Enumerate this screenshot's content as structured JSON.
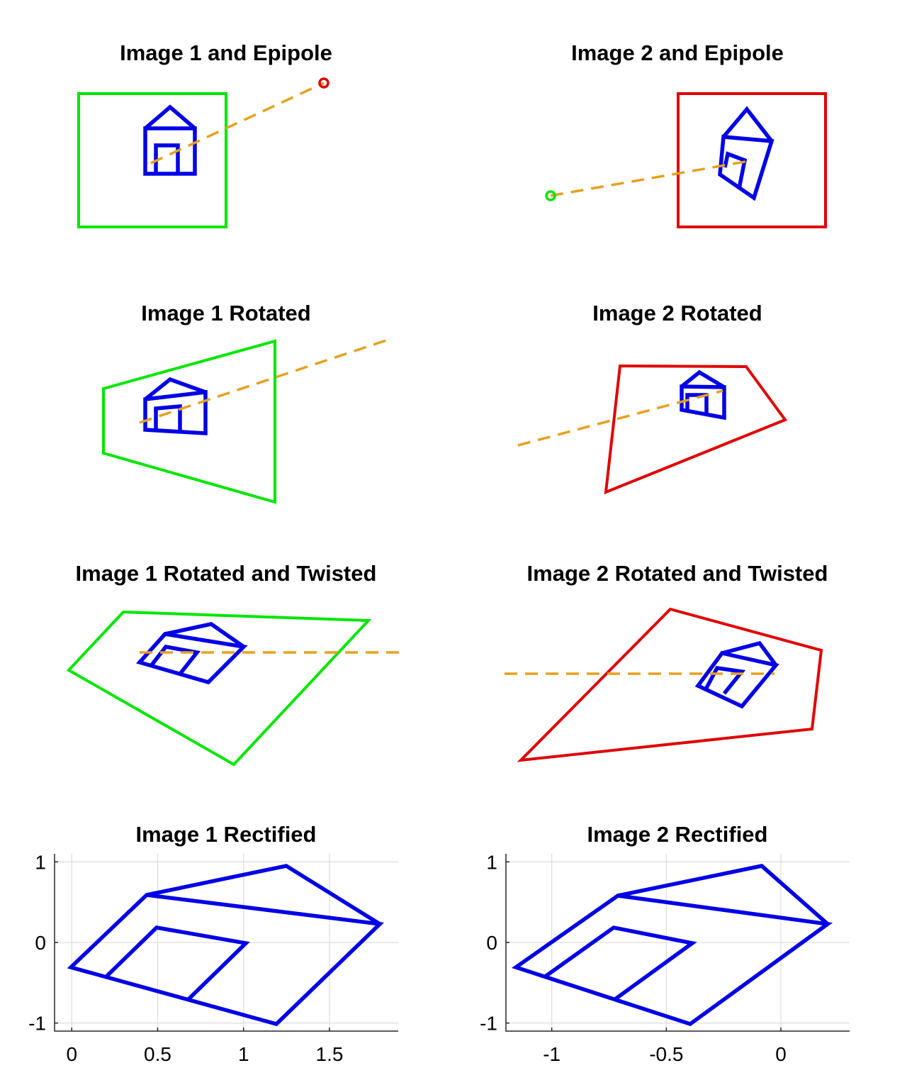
{
  "panels": [
    {
      "id": "img1-epipole",
      "title": "Image 1 and Epipole",
      "frame_color": "#00e600",
      "epipole_color": "#e00000",
      "line_color": "#e6a01e",
      "house_color": "#0000e6"
    },
    {
      "id": "img2-epipole",
      "title": "Image 2 and Epipole",
      "frame_color": "#e00000",
      "epipole_color": "#00e600",
      "line_color": "#e6a01e",
      "house_color": "#0000e6"
    },
    {
      "id": "img1-rotated",
      "title": "Image 1 Rotated",
      "frame_color": "#00e600",
      "line_color": "#e6a01e",
      "house_color": "#0000e6"
    },
    {
      "id": "img2-rotated",
      "title": "Image 2 Rotated",
      "frame_color": "#e00000",
      "line_color": "#e6a01e",
      "house_color": "#0000e6"
    },
    {
      "id": "img1-twisted",
      "title": "Image 1 Rotated and Twisted",
      "frame_color": "#00e600",
      "line_color": "#e6a01e",
      "house_color": "#0000e6"
    },
    {
      "id": "img2-twisted",
      "title": "Image 2 Rotated and Twisted",
      "frame_color": "#e00000",
      "line_color": "#e6a01e",
      "house_color": "#0000e6"
    },
    {
      "id": "img1-rectified",
      "title": "Image 1 Rectified",
      "house_color": "#0000e6"
    },
    {
      "id": "img2-rectified",
      "title": "Image 2 Rectified",
      "house_color": "#0000e6"
    }
  ],
  "rectified_axes": {
    "left": {
      "xlim": [
        -0.1,
        1.9
      ],
      "ylim": [
        -1.1,
        1.1
      ],
      "xticks": [
        0,
        0.5,
        1,
        1.5
      ],
      "xtick_labels": [
        "0",
        "0.5",
        "1",
        "1.5"
      ],
      "yticks": [
        1,
        0,
        -1
      ],
      "ytick_labels": [
        "1",
        "0",
        "-1"
      ],
      "grid": true
    },
    "right": {
      "xlim": [
        -1.2,
        0.3
      ],
      "ylim": [
        -1.1,
        1.1
      ],
      "xticks": [
        -1,
        -0.5,
        0
      ],
      "xtick_labels": [
        "-1",
        "-0.5",
        "0"
      ],
      "yticks": [
        1,
        0,
        -1
      ],
      "ytick_labels": [
        "1",
        "0",
        "-1"
      ],
      "grid": true
    }
  }
}
